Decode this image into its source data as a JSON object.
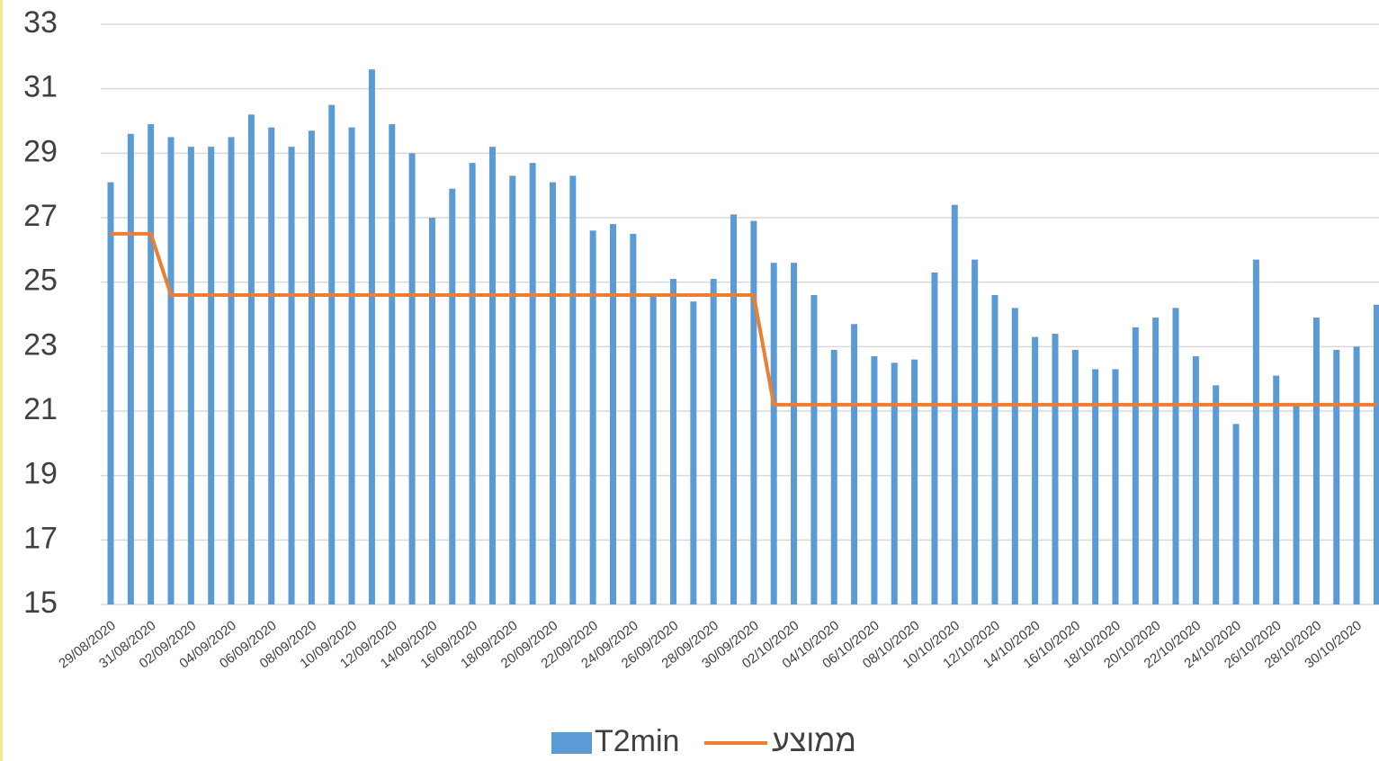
{
  "chart_data": {
    "type": "bar",
    "categories": [
      "29/08/2020",
      null,
      "31/08/2020",
      null,
      "02/09/2020",
      null,
      "04/09/2020",
      null,
      "06/09/2020",
      null,
      "08/09/2020",
      null,
      "10/09/2020",
      null,
      "12/09/2020",
      null,
      "14/09/2020",
      null,
      "16/09/2020",
      null,
      "18/09/2020",
      null,
      "20/09/2020",
      null,
      "22/09/2020",
      null,
      "24/09/2020",
      null,
      "26/09/2020",
      null,
      "28/09/2020",
      null,
      "30/09/2020",
      null,
      "02/10/2020",
      null,
      "04/10/2020",
      null,
      "06/10/2020",
      null,
      "08/10/2020",
      null,
      "10/10/2020",
      null,
      "12/10/2020",
      null,
      "14/10/2020",
      null,
      "16/10/2020",
      null,
      "18/10/2020",
      null,
      "20/10/2020",
      null,
      "22/10/2020",
      null,
      "24/10/2020",
      null,
      "26/10/2020",
      null,
      "28/10/2020",
      null,
      "30/10/2020",
      null
    ],
    "series": [
      {
        "name": "T2min",
        "type": "bar",
        "color": "#5b9bd5",
        "values": [
          28.1,
          29.6,
          29.9,
          29.5,
          29.2,
          29.2,
          29.5,
          30.2,
          29.8,
          29.2,
          29.7,
          30.5,
          29.8,
          31.6,
          29.9,
          29.0,
          27.0,
          27.9,
          28.7,
          29.2,
          28.3,
          28.7,
          28.1,
          28.3,
          26.6,
          26.8,
          26.5,
          24.6,
          25.1,
          24.4,
          25.1,
          27.1,
          26.9,
          25.6,
          25.6,
          24.6,
          22.9,
          23.7,
          22.7,
          22.5,
          22.6,
          25.3,
          27.4,
          25.7,
          24.6,
          24.2,
          23.3,
          23.4,
          22.9,
          22.3,
          22.3,
          23.6,
          23.9,
          24.2,
          22.7,
          21.8,
          20.6,
          25.7,
          22.1,
          21.2,
          23.9,
          22.9,
          23.0,
          24.3
        ]
      },
      {
        "name": "ממוצע",
        "type": "line",
        "color": "#ed7d31",
        "values": [
          26.5,
          26.5,
          26.5,
          24.6,
          24.6,
          24.6,
          24.6,
          24.6,
          24.6,
          24.6,
          24.6,
          24.6,
          24.6,
          24.6,
          24.6,
          24.6,
          24.6,
          24.6,
          24.6,
          24.6,
          24.6,
          24.6,
          24.6,
          24.6,
          24.6,
          24.6,
          24.6,
          24.6,
          24.6,
          24.6,
          24.6,
          24.6,
          24.6,
          21.2,
          21.2,
          21.2,
          21.2,
          21.2,
          21.2,
          21.2,
          21.2,
          21.2,
          21.2,
          21.2,
          21.2,
          21.2,
          21.2,
          21.2,
          21.2,
          21.2,
          21.2,
          21.2,
          21.2,
          21.2,
          21.2,
          21.2,
          21.2,
          21.2,
          21.2,
          21.2,
          21.2,
          21.2,
          21.2,
          21.2
        ]
      }
    ],
    "ylim": [
      15,
      33
    ],
    "yticks": [
      15,
      17,
      19,
      21,
      23,
      25,
      27,
      29,
      31,
      33
    ],
    "grid": true,
    "legend": "bottom"
  }
}
